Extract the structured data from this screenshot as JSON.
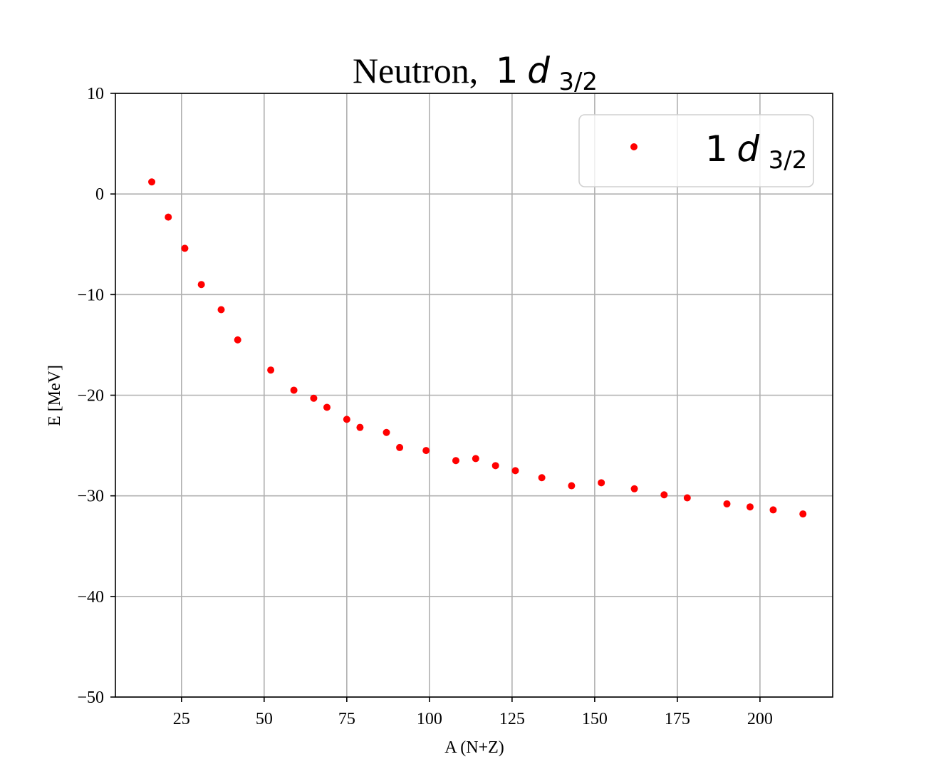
{
  "chart_data": {
    "type": "scatter",
    "title": {
      "main": "Neutron,",
      "sub": "3/2",
      "orbital_prefix": "1",
      "orbital_letter": "d"
    },
    "xlabel": "A (N+Z)",
    "ylabel": "E [MeV]",
    "xlim": [
      5,
      222
    ],
    "ylim": [
      -50,
      10
    ],
    "xticks": [
      25,
      50,
      75,
      100,
      125,
      150,
      175,
      200
    ],
    "yticks": [
      10,
      0,
      -10,
      -20,
      -30,
      -40,
      -50
    ],
    "ytick_labels": [
      "10",
      "0",
      "−10",
      "−20",
      "−30",
      "−40",
      "−50"
    ],
    "grid": true,
    "legend_position": "top-right",
    "series": [
      {
        "name_prefix": "1",
        "name_letter": "d",
        "name_sub": "3/2",
        "color": "#ff0000",
        "marker": "circle",
        "x": [
          16,
          21,
          26,
          31,
          37,
          42,
          52,
          59,
          65,
          69,
          75,
          79,
          87,
          91,
          99,
          108,
          114,
          120,
          126,
          134,
          143,
          152,
          162,
          171,
          178,
          190,
          197,
          204,
          213
        ],
        "y": [
          1.2,
          -2.3,
          -5.4,
          -9.0,
          -11.5,
          -14.5,
          -17.5,
          -19.5,
          -20.3,
          -21.2,
          -22.4,
          -23.2,
          -23.7,
          -25.2,
          -25.5,
          -26.5,
          -26.3,
          -27.0,
          -27.5,
          -28.2,
          -29.0,
          -28.7,
          -29.3,
          -29.9,
          -30.2,
          -30.8,
          -31.1,
          -31.4,
          -31.8
        ]
      }
    ]
  }
}
